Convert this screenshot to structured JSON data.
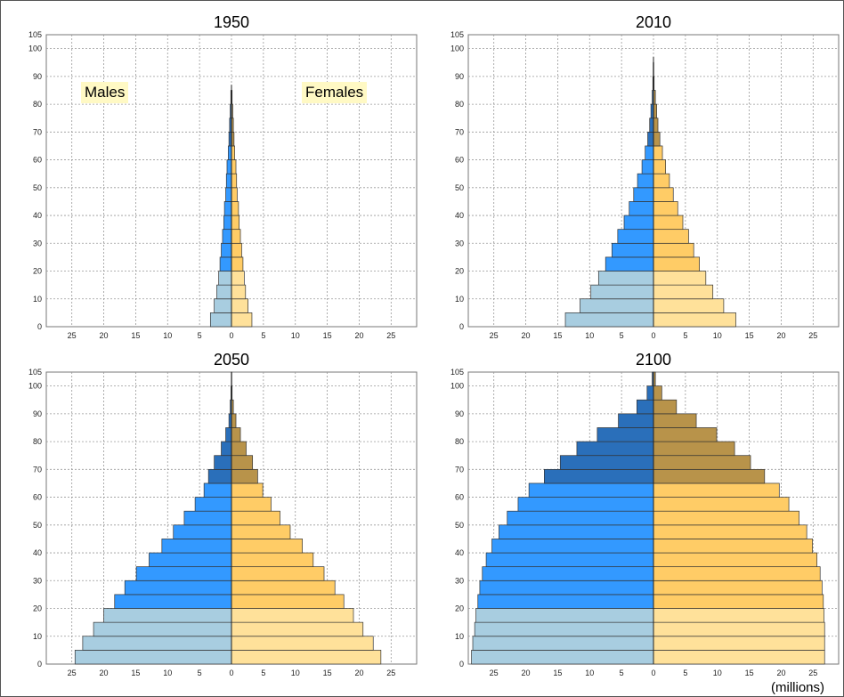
{
  "units_label": "(millions)",
  "legend": {
    "males": "Males",
    "females": "Females"
  },
  "colors": {
    "male_young": "#a8cde0",
    "male_working": "#3399ff",
    "male_old": "#2a6fba",
    "female_young": "#ffe19a",
    "female_working": "#ffcc66",
    "female_old": "#b8934a"
  },
  "chart_data": [
    {
      "type": "bar",
      "title": "1950",
      "age_groups": [
        "0",
        "5",
        "10",
        "15",
        "20",
        "25",
        "30",
        "35",
        "40",
        "45",
        "50",
        "55",
        "60",
        "65",
        "70",
        "75",
        "80"
      ],
      "xlim": [
        -29,
        29
      ],
      "ylim": [
        0,
        105
      ],
      "x_ticks": [
        "25",
        "20",
        "15",
        "10",
        "5",
        "0",
        "5",
        "10",
        "15",
        "20",
        "25"
      ],
      "y_ticks": [
        "0",
        "10",
        "20",
        "30",
        "40",
        "50",
        "60",
        "70",
        "80",
        "90",
        "100",
        "105"
      ],
      "series": [
        {
          "name": "Males",
          "values": [
            3.3,
            2.7,
            2.3,
            2.0,
            1.8,
            1.6,
            1.4,
            1.2,
            1.1,
            0.9,
            0.8,
            0.7,
            0.5,
            0.4,
            0.3,
            0.2,
            0.1
          ]
        },
        {
          "name": "Females",
          "values": [
            3.2,
            2.6,
            2.2,
            2.0,
            1.8,
            1.6,
            1.4,
            1.2,
            1.1,
            0.9,
            0.8,
            0.7,
            0.5,
            0.4,
            0.3,
            0.2,
            0.1
          ]
        }
      ]
    },
    {
      "type": "bar",
      "title": "2010",
      "age_groups": [
        "0",
        "5",
        "10",
        "15",
        "20",
        "25",
        "30",
        "35",
        "40",
        "45",
        "50",
        "55",
        "60",
        "65",
        "70",
        "75",
        "80",
        "85",
        "90"
      ],
      "xlim": [
        -29,
        29
      ],
      "ylim": [
        0,
        105
      ],
      "x_ticks": [
        "25",
        "20",
        "15",
        "10",
        "5",
        "0",
        "5",
        "10",
        "15",
        "20",
        "25"
      ],
      "y_ticks": [
        "0",
        "10",
        "20",
        "30",
        "40",
        "50",
        "60",
        "70",
        "80",
        "90",
        "100",
        "105"
      ],
      "series": [
        {
          "name": "Males",
          "values": [
            13.8,
            11.5,
            9.8,
            8.6,
            7.5,
            6.5,
            5.6,
            4.6,
            3.8,
            3.1,
            2.5,
            1.8,
            1.3,
            0.9,
            0.6,
            0.4,
            0.2,
            0.1,
            0.05
          ]
        },
        {
          "name": "Females",
          "values": [
            12.9,
            11.0,
            9.3,
            8.2,
            7.2,
            6.3,
            5.5,
            4.6,
            3.8,
            3.1,
            2.5,
            1.9,
            1.4,
            1.0,
            0.7,
            0.5,
            0.3,
            0.1,
            0.05
          ]
        }
      ]
    },
    {
      "type": "bar",
      "title": "2050",
      "age_groups": [
        "0",
        "5",
        "10",
        "15",
        "20",
        "25",
        "30",
        "35",
        "40",
        "45",
        "50",
        "55",
        "60",
        "65",
        "70",
        "75",
        "80",
        "85",
        "90",
        "95",
        "100"
      ],
      "xlim": [
        -29,
        29
      ],
      "ylim": [
        0,
        105
      ],
      "x_ticks": [
        "25",
        "20",
        "15",
        "10",
        "5",
        "0",
        "5",
        "10",
        "15",
        "20",
        "25"
      ],
      "y_ticks": [
        "0",
        "10",
        "20",
        "30",
        "40",
        "50",
        "60",
        "70",
        "80",
        "90",
        "100",
        "105"
      ],
      "series": [
        {
          "name": "Males",
          "values": [
            24.5,
            23.3,
            21.6,
            20.0,
            18.3,
            16.7,
            14.9,
            12.9,
            10.9,
            9.1,
            7.4,
            5.7,
            4.3,
            3.6,
            2.7,
            1.6,
            0.9,
            0.4,
            0.2,
            0.08,
            0.03
          ]
        },
        {
          "name": "Females",
          "values": [
            23.4,
            22.2,
            20.6,
            19.1,
            17.6,
            16.2,
            14.5,
            12.8,
            11.1,
            9.2,
            7.6,
            6.2,
            4.9,
            4.1,
            3.3,
            2.3,
            1.4,
            0.7,
            0.3,
            0.1,
            0.05
          ]
        }
      ]
    },
    {
      "type": "bar",
      "title": "2100",
      "age_groups": [
        "0",
        "5",
        "10",
        "15",
        "20",
        "25",
        "30",
        "35",
        "40",
        "45",
        "50",
        "55",
        "60",
        "65",
        "70",
        "75",
        "80",
        "85",
        "90",
        "95",
        "100"
      ],
      "xlim": [
        -29,
        29
      ],
      "ylim": [
        0,
        105
      ],
      "x_ticks": [
        "25",
        "20",
        "15",
        "10",
        "5",
        "0",
        "5",
        "10",
        "15",
        "20",
        "25"
      ],
      "y_ticks": [
        "0",
        "10",
        "20",
        "30",
        "40",
        "50",
        "60",
        "70",
        "80",
        "90",
        "100",
        "105"
      ],
      "series": [
        {
          "name": "Males",
          "values": [
            28.5,
            28.3,
            28.0,
            27.8,
            27.5,
            27.2,
            26.8,
            26.2,
            25.3,
            24.2,
            22.9,
            21.2,
            19.5,
            17.1,
            14.6,
            12.0,
            8.8,
            5.5,
            2.6,
            1.0,
            0.2
          ]
        },
        {
          "name": "Females",
          "values": [
            26.8,
            26.8,
            26.8,
            26.7,
            26.6,
            26.4,
            26.1,
            25.6,
            24.9,
            24.0,
            22.8,
            21.2,
            19.7,
            17.4,
            15.2,
            12.7,
            9.9,
            6.7,
            3.6,
            1.3,
            0.3
          ]
        }
      ]
    }
  ]
}
